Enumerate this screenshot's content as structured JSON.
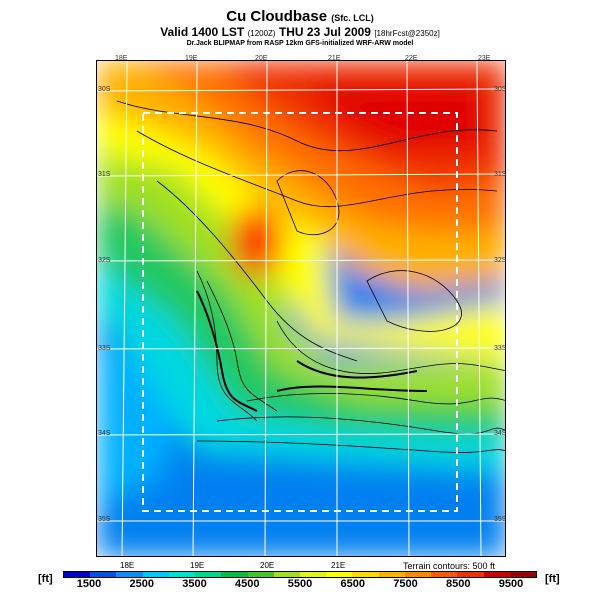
{
  "title": {
    "main": "Cu Cloudbase",
    "main_suffix": "(Sfc. LCL)",
    "line2": "Valid 1400 LST",
    "line2_paren": "(1200Z)",
    "line2_rest": "THU 23 Jul 2009",
    "line2_suffix": "[18hrFcst@2350z]",
    "line3": "Dr.Jack BLIPMAP from RASP 12km GFS-initialized WRF-ARW model"
  },
  "lon_top": [
    "18E",
    "19E",
    "20E",
    "21E",
    "22E",
    "23E"
  ],
  "lon_bottom": [
    "18E",
    "19E",
    "20E",
    "21E"
  ],
  "lat_left": [
    "30S",
    "31S",
    "32S",
    "33S",
    "34S",
    "35S"
  ],
  "lat_right": [
    "30S",
    "31S",
    "32S",
    "33S",
    "34S",
    "35S"
  ],
  "terrain_note": "Terrain contours: 500 ft",
  "colorbar": {
    "unit_left": "[ft]",
    "unit_right": "[ft]",
    "ticks": [
      "1500",
      "2500",
      "3500",
      "4500",
      "5500",
      "6500",
      "7500",
      "8500",
      "9500"
    ],
    "colors": [
      "#0000d0",
      "#0050f0",
      "#0090ff",
      "#00c8ff",
      "#00e0d8",
      "#00d890",
      "#00c040",
      "#40c820",
      "#a0e020",
      "#e0f020",
      "#ffff00",
      "#ffd800",
      "#ffb000",
      "#ff8800",
      "#ff5800",
      "#f03000",
      "#d00000",
      "#a00000"
    ]
  }
}
